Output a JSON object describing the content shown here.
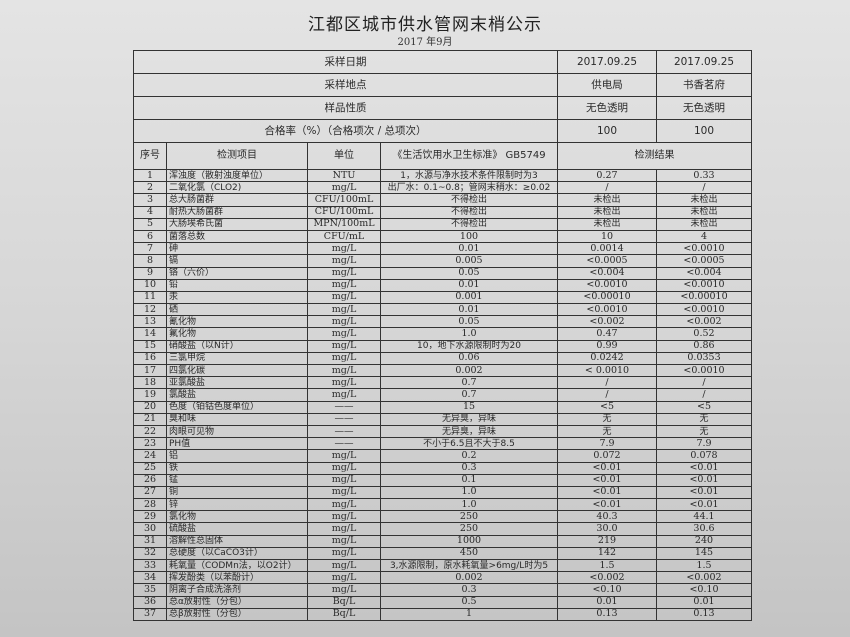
{
  "title": "江都区城市供水管网末梢公示",
  "subtitle": "2017 年9月",
  "summary": [
    {
      "label": "采样日期",
      "values": [
        "2017.09.25",
        "2017.09.25"
      ]
    },
    {
      "label": "采样地点",
      "values": [
        "供电局",
        "书香茗府"
      ]
    },
    {
      "label": "样品性质",
      "values": [
        "无色透明",
        "无色透明"
      ]
    },
    {
      "label": "合格率（%）（合格项次 / 总项次）",
      "values": [
        "100",
        "100"
      ]
    }
  ],
  "headers": {
    "no": "序号",
    "item": "检测项目",
    "unit": "单位",
    "standard": "《生活饮用水卫生标准》 GB5749",
    "result": "检测结果"
  },
  "rows": [
    [
      "1",
      "浑浊度（散射浊度单位）",
      "NTU",
      "1，水源与净水技术条件限制时为3",
      "0.27",
      "0.33"
    ],
    [
      "2",
      "二氧化氯（CLO2)",
      "mg/L",
      "出厂水：0.1~0.8；管网末稍水：≥0.02",
      "/",
      "/"
    ],
    [
      "3",
      "总大肠菌群",
      "CFU/100mL",
      "不得检出",
      "未检出",
      "未检出"
    ],
    [
      "4",
      "耐热大肠菌群",
      "CFU/100mL",
      "不得检出",
      "未检出",
      "未检出"
    ],
    [
      "5",
      "大肠埃希氏菌",
      "MPN/100mL",
      "不得检出",
      "未检出",
      "未检出"
    ],
    [
      "6",
      "菌落总数",
      "CFU/mL",
      "100",
      "10",
      "4"
    ],
    [
      "7",
      "砷",
      "mg/L",
      "0.01",
      "0.0014",
      "<0.0010"
    ],
    [
      "8",
      "镉",
      "mg/L",
      "0.005",
      "<0.0005",
      "<0.0005"
    ],
    [
      "9",
      "铬（六价）",
      "mg/L",
      "0.05",
      "<0.004",
      "<0.004"
    ],
    [
      "10",
      "铅",
      "mg/L",
      "0.01",
      "<0.0010",
      "<0.0010"
    ],
    [
      "11",
      "汞",
      "mg/L",
      "0.001",
      "<0.00010",
      "<0.00010"
    ],
    [
      "12",
      "硒",
      "mg/L",
      "0.01",
      "<0.0010",
      "<0.0010"
    ],
    [
      "13",
      "氰化物",
      "mg/L",
      "0.05",
      "<0.002",
      "<0.002"
    ],
    [
      "14",
      "氟化物",
      "mg/L",
      "1.0",
      "0.47",
      "0.52"
    ],
    [
      "15",
      "硝酸盐（以N计）",
      "mg/L",
      "10，地下水源限制时为20",
      "0.99",
      "0.86"
    ],
    [
      "16",
      "三氯甲烷",
      "mg/L",
      "0.06",
      "0.0242",
      "0.0353"
    ],
    [
      "17",
      "四氯化碳",
      "mg/L",
      "0.002",
      "< 0.0010",
      "<0.0010"
    ],
    [
      "18",
      "亚氯酸盐",
      "mg/L",
      "0.7",
      "/",
      "/"
    ],
    [
      "19",
      "氯酸盐",
      "mg/L",
      "0.7",
      "/",
      "/"
    ],
    [
      "20",
      "色度（铂钴色度单位）",
      "——",
      "15",
      "<5",
      "<5"
    ],
    [
      "21",
      "臭和味",
      "——",
      "无异臭，异味",
      "无",
      "无"
    ],
    [
      "22",
      "肉眼可见物",
      "——",
      "无异臭，异味",
      "无",
      "无"
    ],
    [
      "23",
      "PH值",
      "——",
      "不小于6.5且不大于8.5",
      "7.9",
      "7.9"
    ],
    [
      "24",
      "铝",
      "mg/L",
      "0.2",
      "0.072",
      "0.078"
    ],
    [
      "25",
      "铁",
      "mg/L",
      "0.3",
      "<0.01",
      "<0.01"
    ],
    [
      "26",
      "锰",
      "mg/L",
      "0.1",
      "<0.01",
      "<0.01"
    ],
    [
      "27",
      "铜",
      "mg/L",
      "1.0",
      "<0.01",
      "<0.01"
    ],
    [
      "28",
      "锌",
      "mg/L",
      "1.0",
      "<0.01",
      "<0.01"
    ],
    [
      "29",
      "氯化物",
      "mg/L",
      "250",
      "40.3",
      "44.1"
    ],
    [
      "30",
      "硫酸盐",
      "mg/L",
      "250",
      "30.0",
      "30.6"
    ],
    [
      "31",
      "溶解性总固体",
      "mg/L",
      "1000",
      "219",
      "240"
    ],
    [
      "32",
      "总硬度（以CaCO3计）",
      "mg/L",
      "450",
      "142",
      "145"
    ],
    [
      "33",
      "耗氧量（CODMn法，以O2计）",
      "mg/L",
      "3,水源限制，原水耗氧量>6mg/L时为5",
      "1.5",
      "1.5"
    ],
    [
      "34",
      "挥发酚类（以苯酚计）",
      "mg/L",
      "0.002",
      "<0.002",
      "<0.002"
    ],
    [
      "35",
      "阴离子合成洗涤剂",
      "mg/L",
      "0.3",
      "<0.10",
      "<0.10"
    ],
    [
      "36",
      "总α放射性（分包）",
      "Bq/L",
      "0.5",
      "0.01",
      "0.01"
    ],
    [
      "37",
      "总β放射性（分包）",
      "Bq/L",
      "1",
      "0.13",
      "0.13"
    ]
  ]
}
